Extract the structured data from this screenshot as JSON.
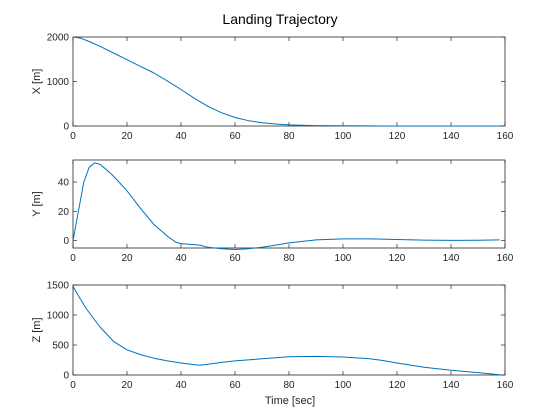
{
  "figure": {
    "title": "Landing Trajectory",
    "xlabel": "Time [sec]",
    "line_color": "#0072BD"
  },
  "chart_data": [
    {
      "type": "line",
      "ylabel": "X [m]",
      "xlim": [
        0,
        160
      ],
      "ylim": [
        0,
        2000
      ],
      "xticks": [
        0,
        20,
        40,
        60,
        80,
        100,
        120,
        140,
        160
      ],
      "yticks": [
        0,
        1000,
        2000
      ],
      "grid": false,
      "series": [
        {
          "x": [
            0,
            3,
            6,
            10,
            15,
            20,
            25,
            30,
            35,
            40,
            45,
            50,
            55,
            60,
            65,
            70,
            75,
            80,
            90,
            100,
            110,
            120,
            140,
            158
          ],
          "y": [
            2000,
            1970,
            1900,
            1790,
            1640,
            1490,
            1340,
            1190,
            1010,
            820,
            620,
            440,
            300,
            190,
            120,
            75,
            45,
            25,
            10,
            5,
            2,
            0,
            0,
            0
          ]
        }
      ]
    },
    {
      "type": "line",
      "ylabel": "Y [m]",
      "xlim": [
        0,
        160
      ],
      "ylim": [
        -5,
        55
      ],
      "xticks": [
        0,
        20,
        40,
        60,
        80,
        100,
        120,
        140,
        160
      ],
      "yticks": [
        0,
        20,
        40
      ],
      "grid": false,
      "series": [
        {
          "x": [
            0,
            2,
            4,
            6,
            8,
            10,
            12,
            15,
            20,
            25,
            30,
            35,
            38,
            40,
            43,
            47,
            50,
            55,
            60,
            65,
            70,
            75,
            80,
            90,
            100,
            110,
            120,
            130,
            140,
            150,
            158
          ],
          "y": [
            0,
            20,
            40,
            50,
            53,
            52,
            49,
            44,
            34,
            22,
            11,
            3,
            -1,
            -2,
            -2.5,
            -3,
            -4.5,
            -5.5,
            -6,
            -5.5,
            -4.5,
            -3,
            -1.5,
            0.5,
            1.2,
            1.2,
            0.8,
            0.4,
            0.2,
            0.3,
            0.5
          ]
        }
      ]
    },
    {
      "type": "line",
      "ylabel": "Z [m]",
      "xlim": [
        0,
        160
      ],
      "ylim": [
        0,
        1500
      ],
      "xticks": [
        0,
        20,
        40,
        60,
        80,
        100,
        120,
        140,
        160
      ],
      "yticks": [
        0,
        500,
        1000,
        1500
      ],
      "grid": false,
      "series": [
        {
          "x": [
            0,
            2,
            5,
            10,
            15,
            20,
            25,
            30,
            35,
            40,
            45,
            47,
            50,
            55,
            60,
            70,
            80,
            90,
            100,
            110,
            115,
            120,
            130,
            140,
            150,
            158
          ],
          "y": [
            1480,
            1320,
            1100,
            800,
            560,
            420,
            340,
            280,
            235,
            200,
            170,
            165,
            180,
            210,
            235,
            270,
            305,
            310,
            300,
            270,
            240,
            200,
            130,
            80,
            40,
            5
          ]
        }
      ]
    }
  ]
}
